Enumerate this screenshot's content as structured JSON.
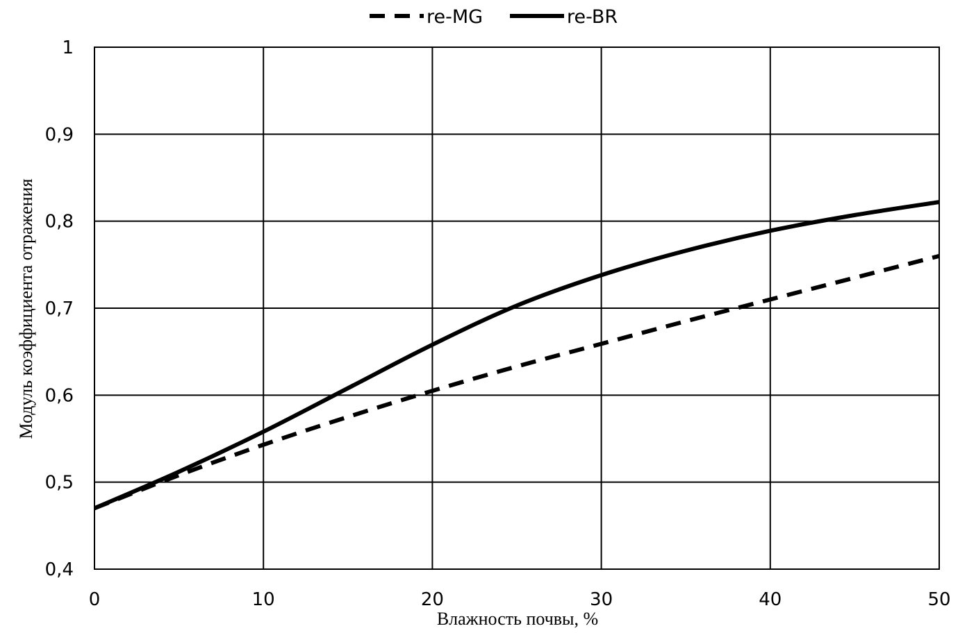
{
  "chart_data": {
    "type": "line",
    "title": "",
    "xlabel": "Влажность почвы, %",
    "ylabel": "Модуль коэффициента отражения",
    "xlim": [
      0,
      50
    ],
    "ylim": [
      0.4,
      1
    ],
    "x_ticks": [
      0,
      10,
      20,
      30,
      40,
      50
    ],
    "x_tick_labels": [
      "0",
      "10",
      "20",
      "30",
      "40",
      "50"
    ],
    "y_ticks": [
      0.4,
      0.5,
      0.6,
      0.7,
      0.8,
      0.9,
      1
    ],
    "y_tick_labels": [
      "0,4",
      "0,5",
      "0,6",
      "0,7",
      "0,8",
      "0,9",
      "1"
    ],
    "grid": true,
    "legend_position": "top-center",
    "series": [
      {
        "name": "re-MG",
        "style": "dashed",
        "color": "#000000",
        "x": [
          0,
          5,
          10,
          15,
          20,
          25,
          30,
          35,
          40,
          45,
          50
        ],
        "y": [
          0.47,
          0.508,
          0.543,
          0.575,
          0.605,
          0.633,
          0.659,
          0.685,
          0.71,
          0.735,
          0.76
        ]
      },
      {
        "name": "re-BR",
        "style": "solid",
        "color": "#000000",
        "x": [
          0,
          5,
          10,
          15,
          20,
          25,
          30,
          35,
          40,
          45,
          50
        ],
        "y": [
          0.47,
          0.512,
          0.558,
          0.608,
          0.658,
          0.703,
          0.738,
          0.766,
          0.789,
          0.807,
          0.822
        ]
      }
    ]
  }
}
